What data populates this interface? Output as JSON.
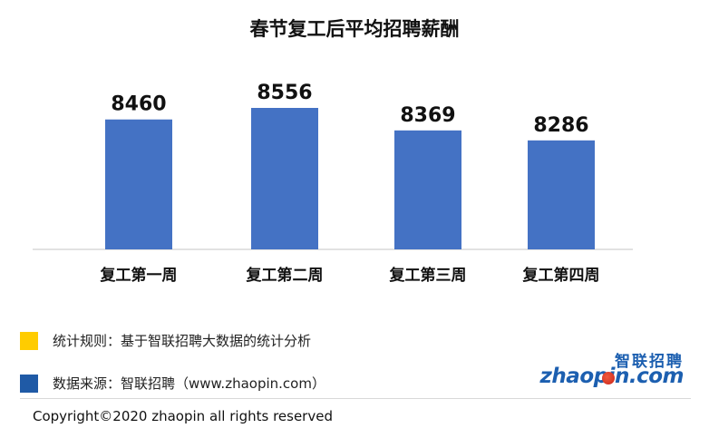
{
  "chart_data": {
    "type": "bar",
    "title": "春节复工后平均招聘薪酬",
    "categories": [
      "复工第一周",
      "复工第二周",
      "复工第三周",
      "复工第四周"
    ],
    "values": [
      8460,
      8556,
      8369,
      8286
    ],
    "data_labels": [
      "8460",
      "8556",
      "8369",
      "8286"
    ],
    "bar_color": "#4472c4",
    "grid": false,
    "legend": "none"
  },
  "legend_notes": [
    {
      "text": "统计规则：基于智联招聘大数据的统计分析",
      "color": "#ffcc00"
    },
    {
      "text": "数据来源：智联招聘（www.zhaopin.com）",
      "color": "#1f5aa6"
    }
  ],
  "logo": {
    "cn": "智联招聘",
    "en": "zhaopin.com"
  },
  "copyright": "Copyright©2020 zhaopin all rights reserved"
}
